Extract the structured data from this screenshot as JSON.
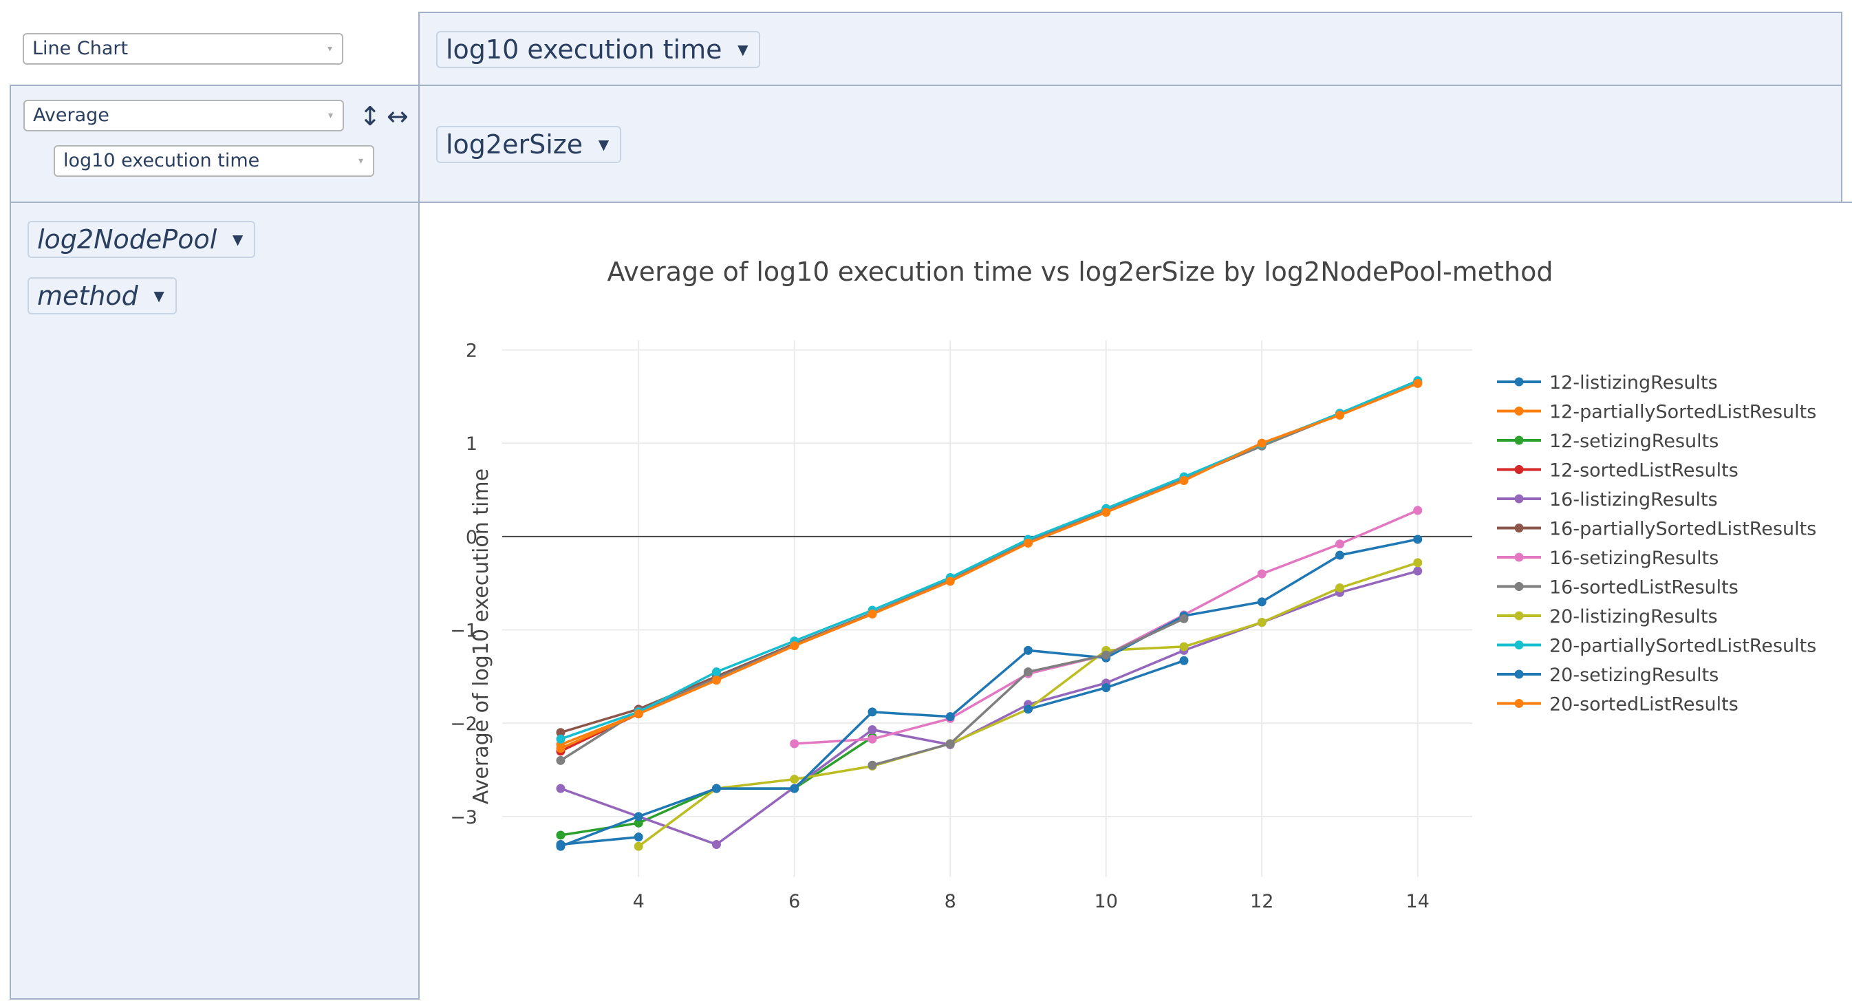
{
  "controls": {
    "chart_type": "Line Chart",
    "aggregation": "Average",
    "agg_column": "log10 execution time",
    "y_pill": "log10 execution time",
    "x_pill": "log2erSize",
    "row_pill_1": "log2NodePool",
    "row_pill_2": "method",
    "caret_small": "▾",
    "caret_pill": "▼",
    "flip_vertical": "↕",
    "flip_horizontal": "↔"
  },
  "chart_data": {
    "type": "line",
    "title": "Average of log10 execution time vs log2erSize by log2NodePool-method",
    "xlabel": "",
    "ylabel": "Average of log10 execution time",
    "xlim": [
      2.25,
      14.7
    ],
    "ylim": [
      -3.65,
      2.1
    ],
    "x_ticks": [
      4,
      6,
      8,
      10,
      12,
      14
    ],
    "y_ticks": [
      -3,
      -2,
      -1,
      0,
      1,
      2
    ],
    "x_tick_labels": [
      "4",
      "6",
      "8",
      "10",
      "12",
      "14"
    ],
    "y_tick_labels": [
      "−3",
      "−2",
      "−1",
      "0",
      "1",
      "2"
    ],
    "grid": true,
    "legend_position": "right",
    "series": [
      {
        "name": "12-listizingResults",
        "color": "#1f77b4",
        "points": [
          [
            3,
            -3.3
          ],
          [
            4,
            -3.22
          ]
        ]
      },
      {
        "name": "12-partiallySortedListResults",
        "color": "#ff7f0e",
        "points": [
          [
            3,
            -2.23
          ],
          [
            4,
            -1.9
          ],
          [
            5,
            -1.53
          ],
          [
            6,
            -1.17
          ],
          [
            7,
            -0.83
          ],
          [
            8,
            -0.47
          ],
          [
            9,
            -0.07
          ],
          [
            10,
            0.27
          ],
          [
            11,
            0.62
          ],
          [
            12,
            1.0
          ],
          [
            13,
            1.31
          ],
          [
            14,
            1.65
          ]
        ]
      },
      {
        "name": "12-setizingResults",
        "color": "#2ca02c",
        "points": [
          [
            3,
            -3.2
          ],
          [
            4,
            -3.07
          ],
          [
            5,
            -2.7
          ],
          [
            6,
            -2.7
          ],
          [
            7,
            -2.15
          ]
        ]
      },
      {
        "name": "12-sortedListResults",
        "color": "#d62728",
        "points": [
          [
            3,
            -2.3
          ],
          [
            4,
            -1.9
          ]
        ]
      },
      {
        "name": "16-listizingResults",
        "color": "#9467bd",
        "points": [
          [
            3,
            -2.7
          ],
          [
            5,
            -3.3
          ],
          [
            7,
            -2.07
          ],
          [
            8,
            -2.23
          ],
          [
            9,
            -1.8
          ],
          [
            10,
            -1.57
          ],
          [
            11,
            -1.22
          ],
          [
            12,
            -0.92
          ],
          [
            13,
            -0.6
          ],
          [
            14,
            -0.37
          ]
        ]
      },
      {
        "name": "16-partiallySortedListResults",
        "color": "#8c564b",
        "points": [
          [
            3,
            -2.1
          ],
          [
            4,
            -1.85
          ],
          [
            5,
            -1.5
          ],
          [
            6,
            -1.15
          ],
          [
            7,
            -0.82
          ],
          [
            8,
            -0.47
          ],
          [
            9,
            -0.05
          ],
          [
            10,
            0.28
          ],
          [
            11,
            0.63
          ],
          [
            12,
            0.98
          ],
          [
            13,
            1.32
          ],
          [
            14,
            1.66
          ]
        ]
      },
      {
        "name": "16-setizingResults",
        "color": "#e377c2",
        "points": [
          [
            6,
            -2.22
          ],
          [
            7,
            -2.17
          ],
          [
            8,
            -1.95
          ],
          [
            9,
            -1.47
          ],
          [
            10,
            -1.27
          ],
          [
            11,
            -0.84
          ],
          [
            12,
            -0.4
          ],
          [
            13,
            -0.08
          ],
          [
            14,
            0.28
          ]
        ]
      },
      {
        "name": "16-sortedListResults",
        "color": "#7f7f7f",
        "points": [
          [
            3,
            -2.4
          ],
          [
            4,
            -1.87
          ],
          [
            5,
            -1.52
          ],
          [
            6,
            -1.16
          ],
          [
            7,
            -0.82
          ],
          [
            8,
            -0.46
          ],
          [
            9,
            -0.06
          ],
          [
            10,
            0.28
          ],
          [
            11,
            0.62
          ],
          [
            12,
            0.97
          ],
          [
            13,
            1.31
          ],
          [
            14,
            1.65
          ]
        ]
      },
      {
        "name": "20-listizingResults",
        "color": "#bcbd22",
        "points": [
          [
            4,
            -3.32
          ],
          [
            5,
            -2.7
          ],
          [
            6,
            -2.6
          ],
          [
            7,
            -2.46
          ],
          [
            8,
            -2.22
          ],
          [
            9,
            -1.85
          ],
          [
            10,
            -1.22
          ],
          [
            11,
            -1.18
          ],
          [
            12,
            -0.92
          ],
          [
            13,
            -0.55
          ],
          [
            14,
            -0.28
          ]
        ]
      },
      {
        "name": "20-partiallySortedListResults",
        "color": "#17becf",
        "points": [
          [
            3,
            -2.17
          ],
          [
            4,
            -1.88
          ],
          [
            5,
            -1.45
          ],
          [
            6,
            -1.12
          ],
          [
            7,
            -0.79
          ],
          [
            8,
            -0.44
          ],
          [
            9,
            -0.03
          ],
          [
            10,
            0.3
          ],
          [
            11,
            0.64
          ],
          [
            12,
            0.99
          ],
          [
            13,
            1.32
          ],
          [
            14,
            1.67
          ]
        ]
      },
      {
        "name": "20-setizingResults",
        "color": "#1f77b4",
        "points": [
          [
            3,
            -3.32
          ],
          [
            4,
            -3.0
          ],
          [
            5,
            -2.7
          ],
          [
            6,
            -2.7
          ],
          [
            7,
            -1.88
          ],
          [
            8,
            -1.93
          ],
          [
            9,
            -1.22
          ],
          [
            10,
            -1.3
          ],
          [
            11,
            -0.85
          ],
          [
            12,
            -0.7
          ],
          [
            13,
            -0.2
          ],
          [
            14,
            -0.03
          ]
        ]
      },
      {
        "name": "20-sortedListResults",
        "color": "#ff7f0e",
        "points": [
          [
            3,
            -2.27
          ],
          [
            4,
            -1.9
          ],
          [
            5,
            -1.54
          ],
          [
            6,
            -1.17
          ],
          [
            7,
            -0.83
          ],
          [
            8,
            -0.48
          ],
          [
            9,
            -0.07
          ],
          [
            10,
            0.26
          ],
          [
            11,
            0.6
          ],
          [
            12,
            1.0
          ],
          [
            13,
            1.3
          ],
          [
            14,
            1.64
          ]
        ]
      },
      {
        "name": "",
        "color": "#1f77b4",
        "points": [
          [
            9,
            -1.85
          ],
          [
            10,
            -1.62
          ],
          [
            11,
            -1.33
          ]
        ]
      },
      {
        "name": "",
        "color": "#7f7f7f",
        "points": [
          [
            7,
            -2.45
          ],
          [
            8,
            -2.22
          ],
          [
            9,
            -1.45
          ],
          [
            10,
            -1.27
          ],
          [
            11,
            -0.88
          ]
        ]
      }
    ]
  }
}
